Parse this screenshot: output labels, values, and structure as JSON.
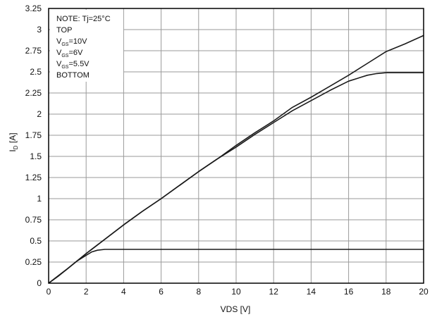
{
  "chart_data": {
    "type": "line",
    "xlabel": "VDS [V]",
    "ylabel": "I",
    "ylabel_sub": "D",
    "ylabel_unit": " [A]",
    "xlim": [
      0,
      20
    ],
    "ylim": [
      0,
      3.25
    ],
    "x_ticks": [
      0,
      2,
      4,
      6,
      8,
      10,
      12,
      14,
      16,
      18,
      20
    ],
    "x_tick_labels": [
      "0",
      "2",
      "4",
      "6",
      "8",
      "10",
      "12",
      "14",
      "16",
      "18",
      "20"
    ],
    "y_ticks": [
      0,
      0.25,
      0.5,
      0.75,
      1,
      1.25,
      1.5,
      1.75,
      2,
      2.25,
      2.5,
      2.75,
      3,
      3.25
    ],
    "y_tick_labels": [
      "0",
      "0.25",
      "0.5",
      "0.75",
      "1",
      "1.25",
      "1.5",
      "1.75",
      "2",
      "2.25",
      "2.5",
      "2.75",
      "3",
      "3.25"
    ],
    "grid": true,
    "line_color": "#1a1a1a",
    "legend_position": "top-left",
    "note": {
      "line1": "NOTE: Tj=25°C",
      "line2": "TOP",
      "vgs_prefix": "V",
      "vgs_sub": "GS",
      "vgs1": "=10V",
      "vgs2": "=6V",
      "vgs3": "=5.5V",
      "line6": "BOTTOM"
    },
    "series": [
      {
        "x": [
          0,
          1,
          2,
          3,
          4,
          5,
          6,
          7,
          8,
          9,
          10,
          11,
          12,
          13,
          14,
          15,
          16,
          17,
          18,
          19,
          20
        ],
        "y": [
          0,
          0.17,
          0.35,
          0.52,
          0.69,
          0.85,
          1.0,
          1.16,
          1.32,
          1.47,
          1.63,
          1.78,
          1.92,
          2.08,
          2.2,
          2.33,
          2.46,
          2.6,
          2.74,
          2.83,
          2.93
        ]
      },
      {
        "x": [
          0,
          1,
          2,
          3,
          4,
          5,
          6,
          7,
          8,
          9,
          10,
          11,
          12,
          13,
          14,
          15,
          16,
          17,
          17.5,
          18,
          19,
          20
        ],
        "y": [
          0,
          0.17,
          0.35,
          0.52,
          0.69,
          0.85,
          1.0,
          1.16,
          1.32,
          1.47,
          1.61,
          1.76,
          1.9,
          2.04,
          2.16,
          2.28,
          2.39,
          2.46,
          2.48,
          2.49,
          2.49,
          2.49
        ]
      },
      {
        "x": [
          0,
          0.5,
          1,
          1.5,
          2,
          2.3,
          2.6,
          3,
          3.5,
          4,
          5,
          6,
          8,
          10,
          12,
          14,
          16,
          18,
          20
        ],
        "y": [
          0,
          0.08,
          0.17,
          0.26,
          0.33,
          0.37,
          0.39,
          0.4,
          0.4,
          0.4,
          0.4,
          0.4,
          0.4,
          0.4,
          0.4,
          0.4,
          0.4,
          0.4,
          0.4
        ]
      }
    ]
  }
}
